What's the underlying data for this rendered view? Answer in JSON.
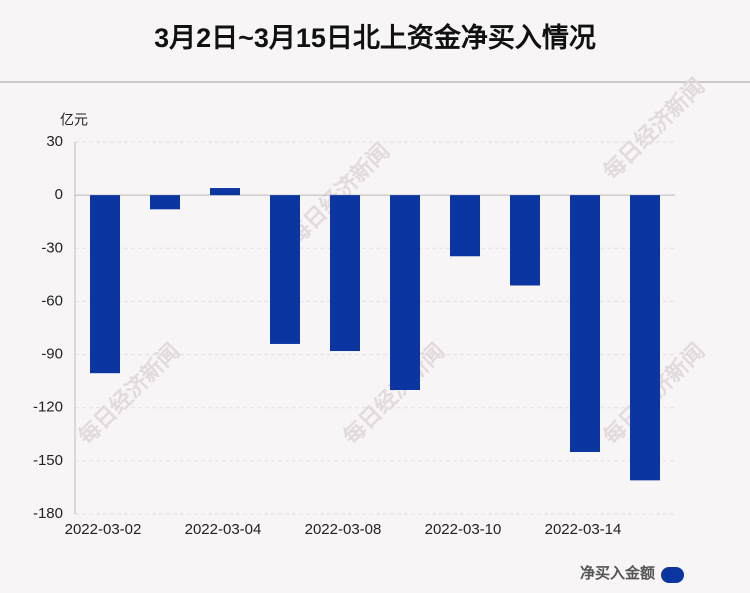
{
  "chart_data": {
    "type": "bar",
    "title": "3月2日~3月15日北上资金净买入情况",
    "y_unit": "亿元",
    "watermark": "每日经济新闻",
    "categories": [
      "2022-03-02",
      null,
      "2022-03-04",
      null,
      "2022-03-08",
      null,
      "2022-03-10",
      null,
      "2022-03-14",
      null
    ],
    "series": [
      {
        "name": "净买入金额",
        "color": "#0b35a0",
        "values": [
          -100.5,
          -8,
          4,
          -84,
          -88,
          -110,
          -34.5,
          -51,
          -145,
          -161
        ]
      }
    ],
    "ylim": [
      -180,
      30
    ],
    "yticks": [
      30,
      0,
      -30,
      -60,
      -90,
      -120,
      -150,
      -180
    ],
    "grid": true,
    "legend": "bottom-right"
  }
}
